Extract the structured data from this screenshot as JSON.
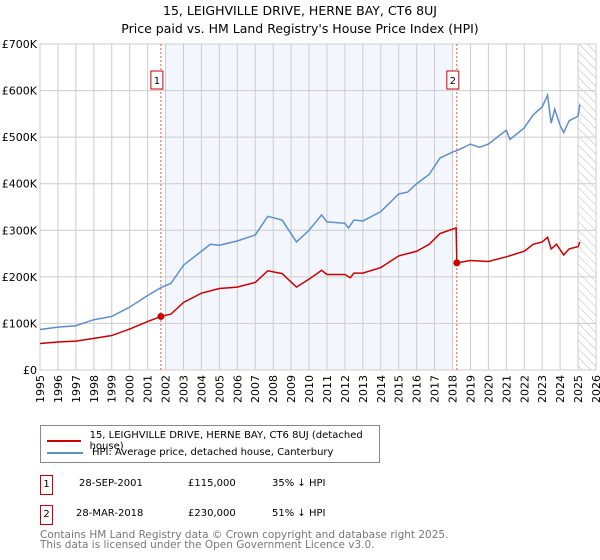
{
  "chart_data": {
    "type": "line",
    "title": "15, LEIGHVILLE DRIVE, HERNE BAY, CT6 8UJ",
    "subtitle": "Price paid vs. HM Land Registry's House Price Index (HPI)",
    "xlim": [
      1995,
      2026
    ],
    "ylim": [
      0,
      700000
    ],
    "x_ticks": [
      "1995",
      "1996",
      "1997",
      "1998",
      "1999",
      "2000",
      "2001",
      "2002",
      "2003",
      "2004",
      "2005",
      "2006",
      "2007",
      "2008",
      "2009",
      "2010",
      "2011",
      "2012",
      "2013",
      "2014",
      "2015",
      "2016",
      "2017",
      "2018",
      "2019",
      "2020",
      "2021",
      "2022",
      "2023",
      "2024",
      "2025",
      "2026"
    ],
    "y_ticks": [
      {
        "v": 0,
        "label": "£0"
      },
      {
        "v": 100000,
        "label": "£100K"
      },
      {
        "v": 200000,
        "label": "£200K"
      },
      {
        "v": 300000,
        "label": "£300K"
      },
      {
        "v": 400000,
        "label": "£400K"
      },
      {
        "v": 500000,
        "label": "£500K"
      },
      {
        "v": 600000,
        "label": "£600K"
      },
      {
        "v": 700000,
        "label": "£700K"
      }
    ],
    "grid": true,
    "shaded_range": [
      2002,
      2018
    ],
    "hatched_from": 2025,
    "series": [
      {
        "name": "15, LEIGHVILLE DRIVE, HERNE BAY, CT6 8UJ (detached house)",
        "color": "#cc0000",
        "x": [
          1995,
          1996,
          1997,
          1998,
          1999,
          2000,
          2001,
          2001.74,
          2002.3,
          2003,
          2004,
          2005,
          2006,
          2007,
          2007.7,
          2008.5,
          2009.3,
          2010,
          2010.7,
          2011,
          2012,
          2012.3,
          2012.5,
          2013,
          2014,
          2015,
          2016,
          2016.7,
          2017.3,
          2018.2,
          2018.24,
          2019,
          2020,
          2021,
          2022,
          2022.5,
          2023,
          2023.3,
          2023.5,
          2023.8,
          2024.2,
          2024.5,
          2025,
          2025.1
        ],
        "y": [
          57000,
          60000,
          62000,
          68000,
          74000,
          88000,
          104000,
          115000,
          120000,
          145000,
          165000,
          175000,
          178000,
          188000,
          213000,
          207000,
          178000,
          195000,
          214000,
          205000,
          205000,
          198000,
          208000,
          208000,
          220000,
          245000,
          255000,
          270000,
          293000,
          305000,
          230000,
          235000,
          233000,
          243000,
          255000,
          270000,
          275000,
          285000,
          260000,
          270000,
          247000,
          260000,
          265000,
          275000
        ]
      },
      {
        "name": "HPI: Average price, detached house, Canterbury",
        "color": "#5b8fd0",
        "x": [
          1995,
          1996,
          1997,
          1998,
          1999,
          2000,
          2001,
          2001.75,
          2002.3,
          2003,
          2004,
          2004.5,
          2005,
          2006,
          2007,
          2007.7,
          2008.5,
          2009.3,
          2010,
          2010.7,
          2011,
          2012,
          2012.2,
          2012.5,
          2013,
          2014,
          2015,
          2015.5,
          2016,
          2016.7,
          2017.3,
          2018,
          2018.3,
          2019,
          2019.5,
          2020,
          2020.5,
          2021,
          2021.2,
          2022,
          2022.5,
          2023,
          2023.3,
          2023.5,
          2023.7,
          2024,
          2024.2,
          2024.5,
          2025,
          2025.1
        ],
        "y": [
          87000,
          92000,
          95000,
          108000,
          115000,
          135000,
          160000,
          177000,
          186000,
          225000,
          255000,
          270000,
          268000,
          277000,
          290000,
          330000,
          322000,
          275000,
          300000,
          333000,
          318000,
          315000,
          305000,
          322000,
          320000,
          340000,
          378000,
          382000,
          400000,
          420000,
          455000,
          468000,
          472000,
          485000,
          478000,
          485000,
          500000,
          515000,
          495000,
          520000,
          548000,
          565000,
          590000,
          530000,
          560000,
          525000,
          510000,
          535000,
          545000,
          570000
        ]
      }
    ],
    "sales": [
      {
        "label": "1",
        "x": 2001.74,
        "y": 115000
      },
      {
        "label": "2",
        "x": 2018.24,
        "y": 230000
      }
    ]
  },
  "legend": {
    "property": "15, LEIGHVILLE DRIVE, HERNE BAY, CT6 8UJ (detached house)",
    "hpi": "HPI: Average price, detached house, Canterbury"
  },
  "sales_table": [
    {
      "num": "1",
      "date": "28-SEP-2001",
      "price": "£115,000",
      "delta": "35% ↓ HPI"
    },
    {
      "num": "2",
      "date": "28-MAR-2018",
      "price": "£230,000",
      "delta": "51% ↓ HPI"
    }
  ],
  "footer": {
    "line1": "Contains HM Land Registry data © Crown copyright and database right 2025.",
    "line2": "This data is licensed under the Open Government Licence v3.0."
  }
}
